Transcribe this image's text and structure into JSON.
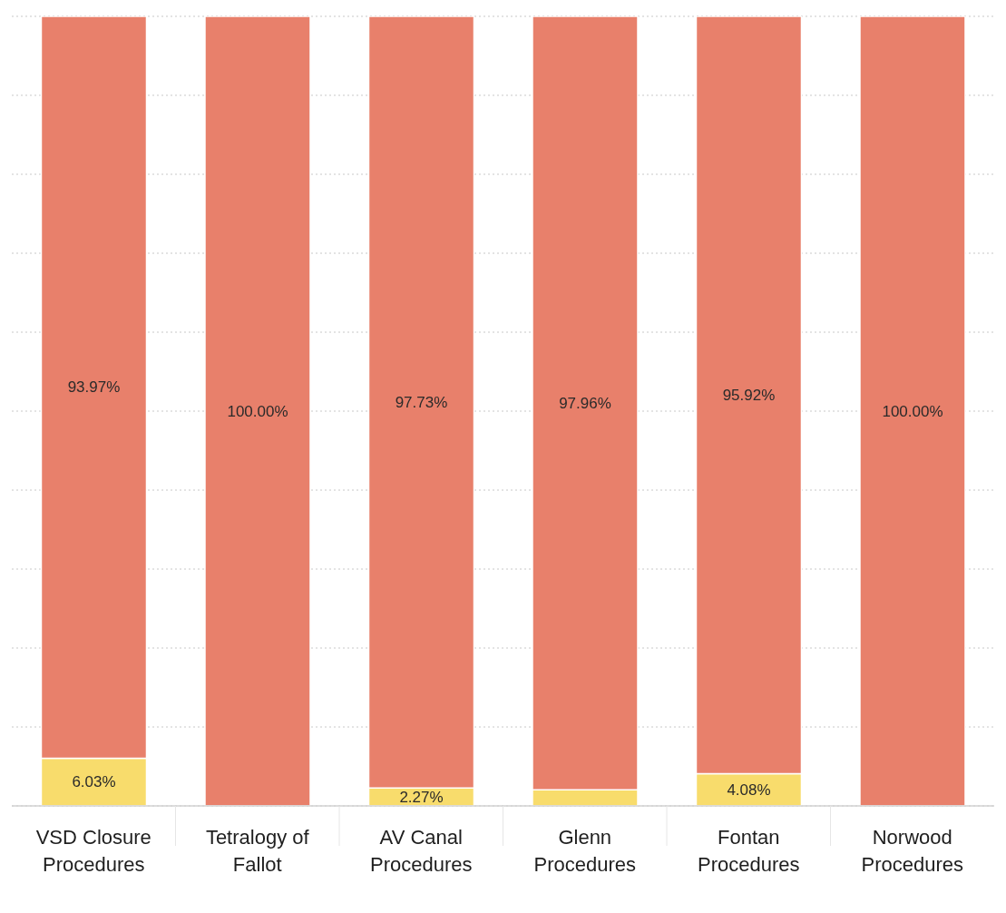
{
  "chart_data": {
    "type": "bar",
    "categories": [
      "VSD Closure Procedures",
      "Tetralogy of Fallot",
      "AV Canal Procedures",
      "Glenn Procedures",
      "Fontan Procedures",
      "Norwood Procedures"
    ],
    "series": [
      {
        "color": "#f8dc6c",
        "values": [
          6.03,
          0,
          2.27,
          2.04,
          4.08,
          0
        ],
        "value_labels": [
          "6.03%",
          null,
          "2.27%",
          null,
          "4.08%",
          null
        ]
      },
      {
        "color": "#e8806b",
        "values": [
          93.97,
          100,
          97.73,
          97.96,
          95.92,
          100
        ],
        "value_labels": [
          "93.97%",
          "100.00%",
          "97.73%",
          "97.96%",
          "95.92%",
          "100.00%"
        ]
      }
    ],
    "stacked": true,
    "ylim": [
      0,
      100
    ],
    "yticks": [
      {
        "value": 0,
        "label": null
      },
      {
        "value": 10,
        "label": null
      },
      {
        "value": 20,
        "label": null
      },
      {
        "value": 30,
        "label": null
      },
      {
        "value": 40,
        "label": null
      },
      {
        "value": 50,
        "label": null
      },
      {
        "value": 60,
        "label": null
      },
      {
        "value": 70,
        "label": null
      },
      {
        "value": 80,
        "label": null
      },
      {
        "value": 90,
        "label": null
      },
      {
        "value": 100,
        "label": null
      }
    ],
    "grid": "y",
    "tick_labels": "x"
  }
}
